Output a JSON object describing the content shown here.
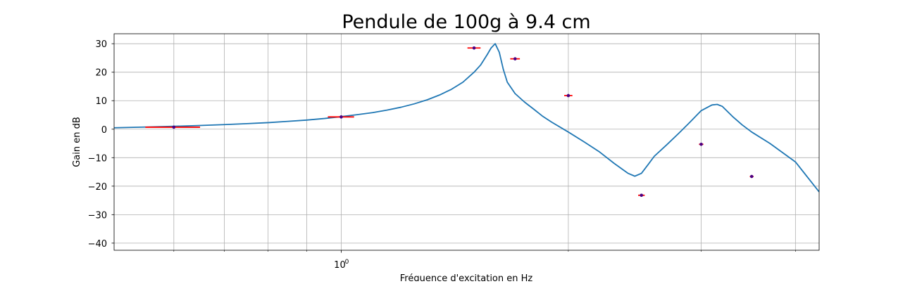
{
  "chart_data": {
    "type": "line",
    "title": "Pendule de 100g à 9.4 cm",
    "xlabel": "Fréquence d'excitation en Hz",
    "ylabel": "Gain en dB",
    "xscale": "log",
    "xlim": [
      0.5,
      4.3
    ],
    "ylim": [
      -42.5,
      33.5
    ],
    "yticks": [
      30,
      20,
      10,
      0,
      -10,
      -20,
      -30,
      -40
    ],
    "ytick_labels": [
      "30",
      "20",
      "10",
      "0",
      "−10",
      "−20",
      "−30",
      "−40"
    ],
    "xticks_major": [
      1.0
    ],
    "xtick_major_labels": [
      "10",
      "0"
    ],
    "xticks_minor": [
      0.6,
      0.7,
      0.8,
      0.9,
      2,
      3,
      4
    ],
    "grid": true,
    "colors": {
      "model_line": "#1f77b4",
      "errorbar": "#ff0000",
      "marker": "#4b0082",
      "grid": "#b0b0b0"
    },
    "series": [
      {
        "kind": "model",
        "x": [
          0.5,
          0.55,
          0.6,
          0.65,
          0.7,
          0.75,
          0.8,
          0.85,
          0.9,
          0.95,
          1.0,
          1.05,
          1.1,
          1.15,
          1.2,
          1.25,
          1.3,
          1.35,
          1.4,
          1.45,
          1.5,
          1.53,
          1.56,
          1.58,
          1.6,
          1.62,
          1.64,
          1.66,
          1.7,
          1.75,
          1.8,
          1.85,
          1.9,
          2.0,
          2.1,
          2.2,
          2.3,
          2.4,
          2.45,
          2.5,
          2.55,
          2.6,
          2.7,
          2.8,
          2.9,
          3.0,
          3.1,
          3.15,
          3.2,
          3.3,
          3.4,
          3.5,
          3.7,
          4.0,
          4.3
        ],
        "y": [
          0.5,
          0.75,
          1.0,
          1.3,
          1.6,
          1.95,
          2.3,
          2.75,
          3.2,
          3.75,
          4.4,
          5.1,
          5.8,
          6.7,
          7.7,
          8.9,
          10.3,
          12.0,
          14.0,
          16.5,
          20.0,
          22.5,
          26.0,
          28.5,
          30.0,
          27.0,
          21.0,
          16.5,
          12.5,
          9.5,
          7.0,
          4.5,
          2.5,
          -1.0,
          -4.5,
          -8.0,
          -12.0,
          -15.5,
          -16.5,
          -15.5,
          -12.5,
          -9.5,
          -5.5,
          -1.5,
          2.5,
          6.5,
          8.5,
          8.7,
          8.0,
          4.5,
          1.5,
          -1.0,
          -5.0,
          -11.5,
          -22.0
        ]
      },
      {
        "kind": "measurements",
        "points": [
          {
            "x": 0.6,
            "y": 0.7,
            "xerr": 0.05
          },
          {
            "x": 1.0,
            "y": 4.3,
            "xerr": 0.04
          },
          {
            "x": 1.5,
            "y": 28.5,
            "xerr": 0.03
          },
          {
            "x": 1.7,
            "y": 24.7,
            "xerr": 0.025
          },
          {
            "x": 2.0,
            "y": 11.8,
            "xerr": 0.025
          },
          {
            "x": 2.5,
            "y": -23.2,
            "xerr": 0.025
          },
          {
            "x": 3.0,
            "y": -5.3,
            "xerr": 0.02
          },
          {
            "x": 3.5,
            "y": -16.6,
            "xerr": 0.02
          }
        ]
      }
    ]
  }
}
